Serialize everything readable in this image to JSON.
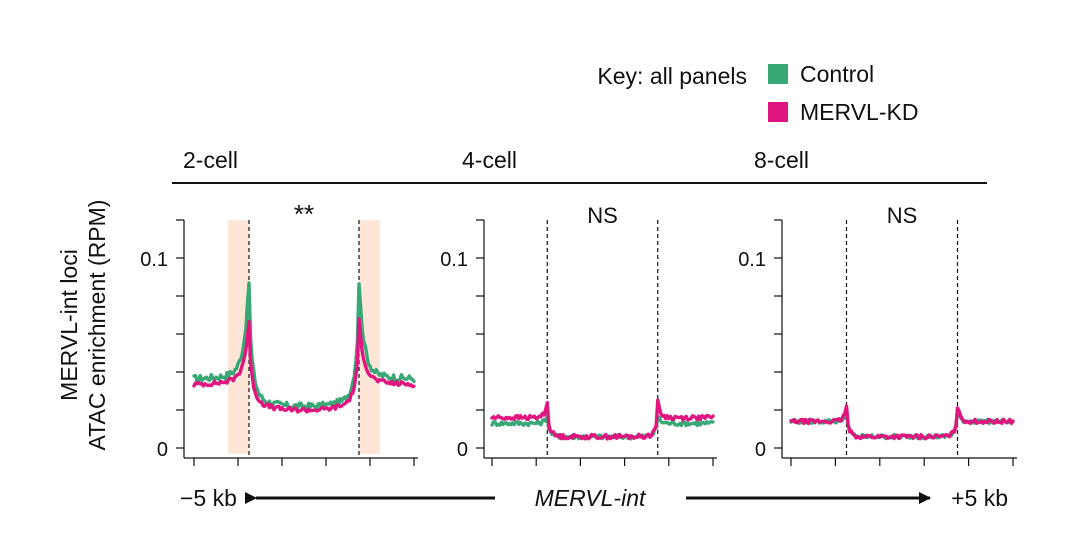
{
  "key": {
    "title": "Key: all panels",
    "items": [
      {
        "label": "Control",
        "color": "#3aa876"
      },
      {
        "label": "MERVL-KD",
        "color": "#e0157f"
      }
    ]
  },
  "y_axis_label": {
    "line1": "MERVL-int loci",
    "line2": "ATAC enrichment (RPM)"
  },
  "x_axis": {
    "left_label": "−5 kb",
    "center_label": "MERVL-int",
    "right_label": "+5 kb"
  },
  "chart_data": [
    {
      "type": "line",
      "panel": "2-cell",
      "significance": "**",
      "highlight_regions": true,
      "x_range": [
        -5,
        5
      ],
      "ylim": [
        0,
        0.12
      ],
      "y_ticks": [
        0,
        0.1
      ],
      "y_tick_labels": [
        "0",
        "0.1"
      ],
      "boundaries": [
        -2.5,
        2.5
      ],
      "series": [
        {
          "name": "Control",
          "color": "#3aa876",
          "shape": "peak",
          "base": 0.036,
          "peak": 0.083,
          "trough": 0.022,
          "noise": 0.0018
        },
        {
          "name": "MERVL-KD",
          "color": "#e0157f",
          "shape": "peak",
          "base": 0.033,
          "peak": 0.063,
          "trough": 0.02,
          "noise": 0.0012
        }
      ]
    },
    {
      "type": "line",
      "panel": "4-cell",
      "significance": "NS",
      "highlight_regions": false,
      "x_range": [
        -5,
        5
      ],
      "ylim": [
        0,
        0.12
      ],
      "y_ticks": [
        0,
        0.1
      ],
      "y_tick_labels": [
        "0",
        "0.1"
      ],
      "boundaries": [
        -2.5,
        2.5
      ],
      "series": [
        {
          "name": "Control",
          "color": "#3aa876",
          "shape": "dip",
          "base": 0.013,
          "peak": 0.017,
          "trough": 0.006,
          "noise": 0.0012
        },
        {
          "name": "MERVL-KD",
          "color": "#e0157f",
          "shape": "dip",
          "base": 0.016,
          "peak": 0.024,
          "trough": 0.006,
          "noise": 0.0012
        }
      ]
    },
    {
      "type": "line",
      "panel": "8-cell",
      "significance": "NS",
      "highlight_regions": false,
      "x_range": [
        -5,
        5
      ],
      "ylim": [
        0,
        0.12
      ],
      "y_ticks": [
        0,
        0.1
      ],
      "y_tick_labels": [
        "0",
        "0.1"
      ],
      "boundaries": [
        -2.5,
        2.5
      ],
      "series": [
        {
          "name": "Control",
          "color": "#3aa876",
          "shape": "dip",
          "base": 0.014,
          "peak": 0.019,
          "trough": 0.006,
          "noise": 0.0011
        },
        {
          "name": "MERVL-KD",
          "color": "#e0157f",
          "shape": "dip",
          "base": 0.014,
          "peak": 0.022,
          "trough": 0.006,
          "noise": 0.0011
        }
      ]
    }
  ]
}
